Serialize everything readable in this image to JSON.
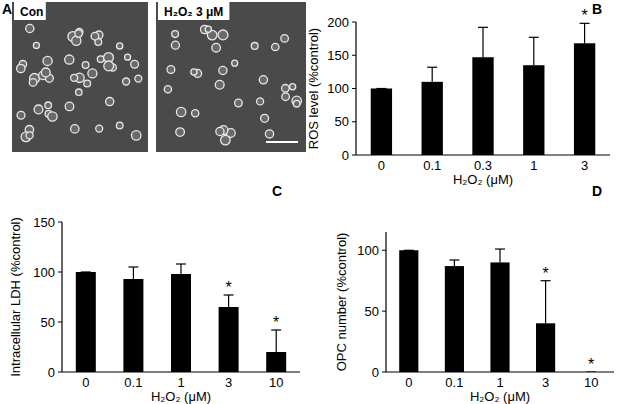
{
  "chart_data": [
    {
      "type": "image",
      "title": "A",
      "labels": [
        "Con",
        "H₂O₂ 3 μM"
      ]
    },
    {
      "type": "bar",
      "title": "B",
      "y_label": "ROS level (%control)",
      "x_label": "H₂O₂ (μM)",
      "categories": [
        "0",
        "0.1",
        "0.3",
        "1",
        "3"
      ],
      "values": [
        100,
        110,
        147,
        135,
        168
      ],
      "errors": [
        0,
        22,
        45,
        42,
        30
      ],
      "significance": [
        null,
        null,
        null,
        null,
        "*"
      ],
      "color": "#000000",
      "ylim": [
        0,
        200
      ],
      "yticks": [
        0,
        50,
        100,
        150,
        200
      ]
    },
    {
      "type": "bar",
      "title": "C",
      "y_label": "Intracellular LDH (%control)",
      "x_label": "H₂O₂ (μM)",
      "categories": [
        "0",
        "0.1",
        "1",
        "3",
        "10"
      ],
      "values": [
        100,
        93,
        98,
        65,
        20
      ],
      "errors": [
        0,
        12,
        10,
        12,
        22
      ],
      "significance": [
        null,
        null,
        null,
        "*",
        "*"
      ],
      "color": "#000000",
      "ylim": [
        0,
        150
      ],
      "yticks": [
        0,
        50,
        100,
        150
      ]
    },
    {
      "type": "bar",
      "title": "D",
      "y_label": "OPC number (%control)",
      "x_label": "H₂O₂ (μM)",
      "categories": [
        "0",
        "0.1",
        "1",
        "3",
        "10"
      ],
      "values": [
        100,
        87,
        90,
        40,
        0
      ],
      "errors": [
        0,
        5,
        11,
        35,
        0
      ],
      "significance": [
        null,
        null,
        null,
        "*",
        "*"
      ],
      "color": "#000000",
      "ylim": [
        0,
        115
      ],
      "yticks": [
        0,
        50,
        100
      ]
    }
  ]
}
